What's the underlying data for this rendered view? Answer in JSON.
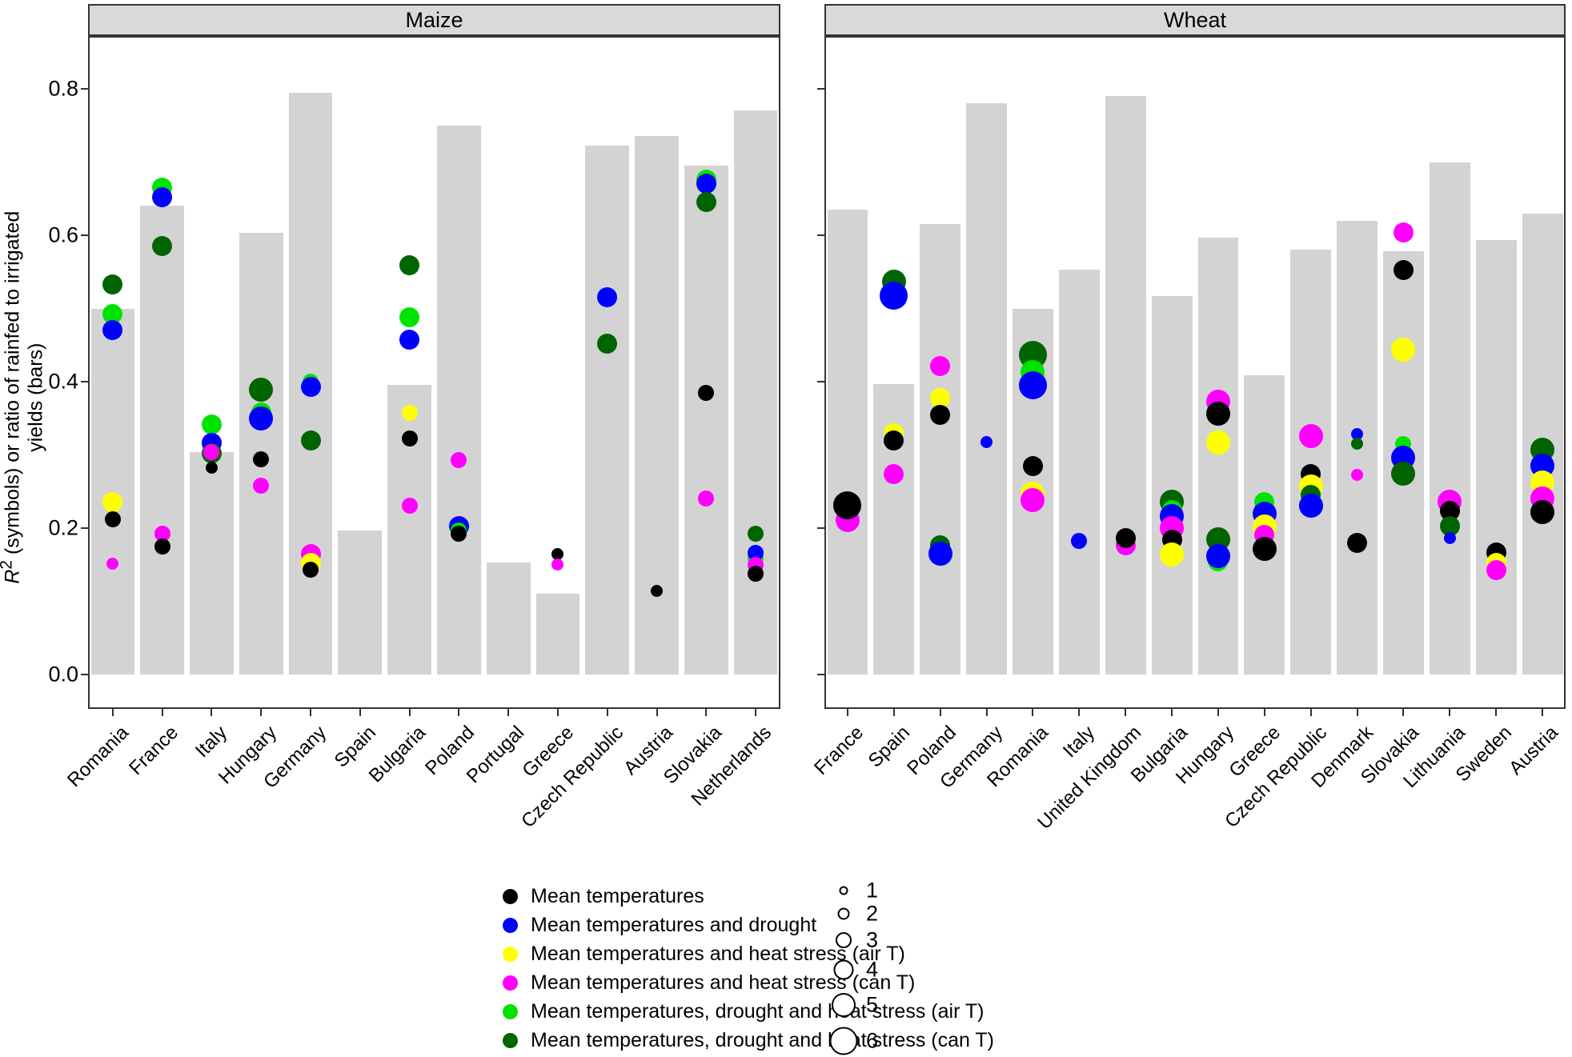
{
  "chart_data": {
    "type": "bar",
    "title": "",
    "ylabel": "R2 (symbols) or ratio of rainfed to irrigated yields (bars)",
    "ylim": [
      0,
      0.87
    ],
    "yticks": [
      "0.0",
      "0.2",
      "0.4",
      "0.6",
      "0.8"
    ],
    "ytick_values": [
      0,
      0.2,
      0.4,
      0.6,
      0.8
    ],
    "grid": "off",
    "legend_position": "bottom",
    "bar_color_hex": "#d3d3d3",
    "series_colors": {
      "k": "#000000",
      "b": "#0000ff",
      "y": "#ffff00",
      "m": "#ff00ff",
      "g": "#00e300",
      "d": "#006400"
    },
    "panels": [
      {
        "title": "Maize",
        "categories": [
          "Romania",
          "France",
          "Italy",
          "Hungary",
          "Germany",
          "Spain",
          "Bulgaria",
          "Poland",
          "Portugal",
          "Greece",
          "Czech Republic",
          "Austria",
          "Slovakia",
          "Netherlands"
        ],
        "bar_values": [
          0.5,
          0.64,
          0.304,
          0.603,
          0.795,
          0.197,
          0.396,
          0.75,
          0.153,
          0.11,
          0.722,
          0.735,
          0.695,
          0.77
        ],
        "symbols": [
          [
            [
              "d",
              0.533,
              4
            ],
            [
              "g",
              0.492,
              4
            ],
            [
              "b",
              0.47,
              4
            ],
            [
              "y",
              0.235,
              4
            ],
            [
              "k",
              0.212,
              3
            ],
            [
              "m",
              0.151,
              2
            ]
          ],
          [
            [
              "g",
              0.665,
              4
            ],
            [
              "b",
              0.652,
              4
            ],
            [
              "d",
              0.585,
              4
            ],
            [
              "m",
              0.192,
              3
            ],
            [
              "k",
              0.175,
              3
            ]
          ],
          [
            [
              "g",
              0.342,
              4
            ],
            [
              "b",
              0.316,
              4
            ],
            [
              "d",
              0.302,
              4
            ],
            [
              "m",
              0.304,
              3
            ],
            [
              "k",
              0.282,
              2
            ]
          ],
          [
            [
              "d",
              0.389,
              5
            ],
            [
              "g",
              0.358,
              4
            ],
            [
              "b",
              0.35,
              5
            ],
            [
              "k",
              0.294,
              3
            ],
            [
              "m",
              0.258,
              3
            ]
          ],
          [
            [
              "g",
              0.4,
              3
            ],
            [
              "b",
              0.393,
              4
            ],
            [
              "d",
              0.32,
              4
            ],
            [
              "m",
              0.165,
              4
            ],
            [
              "y",
              0.152,
              4
            ],
            [
              "k",
              0.143,
              3
            ]
          ],
          [],
          [
            [
              "d",
              0.559,
              4
            ],
            [
              "g",
              0.488,
              4
            ],
            [
              "b",
              0.457,
              4
            ],
            [
              "y",
              0.357,
              3
            ],
            [
              "k",
              0.322,
              3
            ],
            [
              "m",
              0.231,
              3
            ]
          ],
          [
            [
              "m",
              0.293,
              3
            ],
            [
              "b",
              0.203,
              4
            ],
            [
              "g",
              0.197,
              3
            ],
            [
              "k",
              0.192,
              3
            ]
          ],
          [],
          [
            [
              "k",
              0.165,
              2
            ],
            [
              "m",
              0.15,
              2
            ]
          ],
          [
            [
              "b",
              0.515,
              4
            ],
            [
              "d",
              0.452,
              4
            ]
          ],
          [
            [
              "k",
              0.114,
              2
            ]
          ],
          [
            [
              "g",
              0.676,
              4
            ],
            [
              "b",
              0.67,
              4
            ],
            [
              "d",
              0.645,
              4
            ],
            [
              "k",
              0.385,
              3
            ],
            [
              "m",
              0.24,
              3
            ]
          ],
          [
            [
              "d",
              0.192,
              3
            ],
            [
              "g",
              0.158,
              3
            ],
            [
              "b",
              0.166,
              3
            ],
            [
              "m",
              0.15,
              3
            ],
            [
              "k",
              0.138,
              3
            ]
          ]
        ]
      },
      {
        "title": "Wheat",
        "categories": [
          "France",
          "Spain",
          "Poland",
          "Germany",
          "Romania",
          "Italy",
          "United Kingdom",
          "Bulgaria",
          "Hungary",
          "Greece",
          "Czech Republic",
          "Denmark",
          "Slovakia",
          "Lithuania",
          "Sweden",
          "Austria"
        ],
        "bar_values": [
          0.635,
          0.397,
          0.615,
          0.78,
          0.5,
          0.553,
          0.79,
          0.517,
          0.597,
          0.409,
          0.58,
          0.62,
          0.578,
          0.7,
          0.593,
          0.63
        ],
        "symbols": [
          [
            [
              "m",
              0.211,
              5
            ],
            [
              "k",
              0.231,
              6
            ]
          ],
          [
            [
              "d",
              0.537,
              5
            ],
            [
              "b",
              0.517,
              6
            ],
            [
              "y",
              0.33,
              4
            ],
            [
              "k",
              0.32,
              4
            ],
            [
              "m",
              0.274,
              4
            ]
          ],
          [
            [
              "m",
              0.421,
              4
            ],
            [
              "y",
              0.378,
              4
            ],
            [
              "k",
              0.355,
              4
            ],
            [
              "d",
              0.176,
              4
            ],
            [
              "b",
              0.165,
              5
            ]
          ],
          [
            [
              "b",
              0.317,
              2
            ]
          ],
          [
            [
              "d",
              0.437,
              6
            ],
            [
              "g",
              0.413,
              5
            ],
            [
              "b",
              0.395,
              6
            ],
            [
              "k",
              0.285,
              4
            ],
            [
              "y",
              0.247,
              5
            ],
            [
              "m",
              0.238,
              5
            ]
          ],
          [
            [
              "b",
              0.182,
              3
            ]
          ],
          [
            [
              "m",
              0.176,
              4
            ],
            [
              "k",
              0.186,
              4
            ]
          ],
          [
            [
              "d",
              0.236,
              5
            ],
            [
              "g",
              0.225,
              4
            ],
            [
              "b",
              0.216,
              5
            ],
            [
              "m",
              0.2,
              5
            ],
            [
              "k",
              0.184,
              4
            ],
            [
              "y",
              0.164,
              5
            ]
          ],
          [
            [
              "m",
              0.373,
              5
            ],
            [
              "k",
              0.356,
              5
            ],
            [
              "y",
              0.317,
              5
            ],
            [
              "d",
              0.185,
              5
            ],
            [
              "g",
              0.155,
              4
            ],
            [
              "b",
              0.162,
              5
            ]
          ],
          [
            [
              "g",
              0.236,
              4
            ],
            [
              "b",
              0.22,
              5
            ],
            [
              "y",
              0.202,
              5
            ],
            [
              "m",
              0.191,
              4
            ],
            [
              "k",
              0.172,
              5
            ]
          ],
          [
            [
              "m",
              0.326,
              5
            ],
            [
              "k",
              0.274,
              4
            ],
            [
              "y",
              0.257,
              5
            ],
            [
              "d",
              0.245,
              4
            ],
            [
              "b",
              0.231,
              5
            ]
          ],
          [
            [
              "b",
              0.328,
              2
            ],
            [
              "d",
              0.315,
              2
            ],
            [
              "m",
              0.273,
              2
            ],
            [
              "k",
              0.18,
              4
            ]
          ],
          [
            [
              "m",
              0.604,
              4
            ],
            [
              "k",
              0.552,
              4
            ],
            [
              "y",
              0.444,
              5
            ],
            [
              "g",
              0.315,
              3
            ],
            [
              "b",
              0.296,
              5
            ],
            [
              "d",
              0.274,
              5
            ]
          ],
          [
            [
              "m",
              0.236,
              5
            ],
            [
              "k",
              0.224,
              4
            ],
            [
              "d",
              0.203,
              4
            ],
            [
              "b",
              0.186,
              2
            ]
          ],
          [
            [
              "k",
              0.167,
              4
            ],
            [
              "y",
              0.152,
              4
            ],
            [
              "m",
              0.143,
              4
            ]
          ],
          [
            [
              "d",
              0.307,
              5
            ],
            [
              "b",
              0.285,
              5
            ],
            [
              "y",
              0.262,
              5
            ],
            [
              "m",
              0.24,
              5
            ],
            [
              "k",
              0.222,
              5
            ]
          ]
        ]
      }
    ]
  },
  "ylabel_parts": {
    "r": "R",
    "sup": "2",
    "rest": " (symbols) or ratio of rainfed to irrigated yields (bars)"
  },
  "legend": {
    "entries": [
      {
        "color_key": "k",
        "label": "Mean temperatures"
      },
      {
        "color_key": "b",
        "label": "Mean temperatures and drought"
      },
      {
        "color_key": "y",
        "label": "Mean temperatures and heat stress (air T)"
      },
      {
        "color_key": "m",
        "label": "Mean temperatures and heat stress (can T)"
      },
      {
        "color_key": "g",
        "label": "Mean temperatures, drought and heat stress (air T)"
      },
      {
        "color_key": "d",
        "label": "Mean temperatures, drought and heat stress (can T)"
      }
    ],
    "sizes": [
      "1",
      "2",
      "3",
      "4",
      "5",
      "6"
    ]
  }
}
